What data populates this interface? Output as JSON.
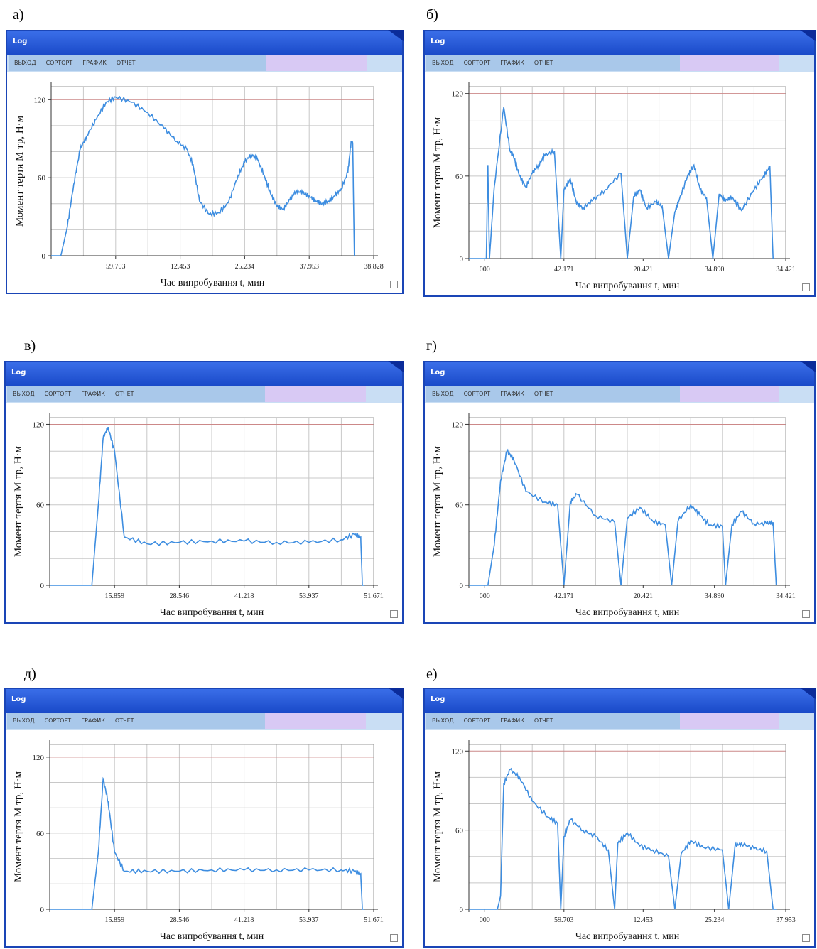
{
  "panels": [
    {
      "label": "а)",
      "window_title": "Log",
      "menu": [
        "ВЫХОД",
        "СОРТОРТ",
        "ГРАФИК",
        "ОТЧЕТ"
      ],
      "chart_data": {
        "type": "line",
        "ylabel": "Момент тертя M тр, Н·м",
        "xlabel": "Час випробування t, мин",
        "yticks": [
          "0",
          "60",
          "120"
        ],
        "ylim": [
          0,
          130
        ],
        "xticks": [
          "59.703",
          "12.453",
          "25.234",
          "37.953",
          "38.828"
        ],
        "xlim": [
          0,
          10
        ],
        "grid": true,
        "series": [
          {
            "x": [
              0,
              0.3,
              0.5,
              0.7,
              0.9,
              1.1,
              1.4,
              1.7,
              2.0,
              2.5,
              3.0,
              3.5,
              3.9,
              4.2,
              4.4,
              4.6,
              4.9,
              5.2,
              5.5,
              5.8,
              6.0,
              6.2,
              6.4,
              6.6,
              6.8,
              7.0,
              7.2,
              7.4,
              7.6,
              7.8,
              8.0,
              8.2,
              8.4,
              8.6,
              8.8,
              9.0,
              9.2,
              9.3,
              9.35,
              9.4
            ],
            "y": [
              0,
              0,
              22,
              55,
              82,
              92,
              105,
              118,
              122,
              118,
              110,
              98,
              88,
              82,
              70,
              42,
              32,
              33,
              41,
              62,
              72,
              78,
              74,
              62,
              48,
              38,
              36,
              43,
              50,
              48,
              46,
              42,
              40,
              42,
              46,
              52,
              64,
              88,
              86,
              0
            ]
          }
        ]
      }
    },
    {
      "label": "б)",
      "window_title": "Log",
      "menu": [
        "ВЫХОД",
        "СОРТОРТ",
        "ГРАФИК",
        "ОТЧЕТ"
      ],
      "chart_data": {
        "type": "line",
        "ylabel": "Момент тертя M тр, Н·м",
        "xlabel": "Час випробування t, мин",
        "yticks": [
          "0",
          "60",
          "120"
        ],
        "ylim": [
          0,
          125
        ],
        "xticks": [
          "000",
          "42.171",
          "20.421",
          "34.890",
          "34.421"
        ],
        "xlim": [
          0,
          10
        ],
        "grid": true,
        "series": [
          {
            "x": [
              0,
              0.5,
              0.55,
              0.6,
              0.65,
              0.8,
              1.1,
              1.3,
              1.4,
              1.6,
              1.8,
              2.0,
              2.2,
              2.4,
              2.7,
              2.9,
              3.0,
              3.2,
              3.4,
              3.6,
              3.9,
              4.3,
              4.8,
              5.0,
              5.2,
              5.4,
              5.6,
              5.9,
              6.1,
              6.3,
              6.5,
              6.6,
              6.9,
              7.1,
              7.3,
              7.5,
              7.7,
              7.9,
              8.1,
              8.3,
              8.6,
              9.0,
              9.3,
              9.5,
              9.6
            ],
            "y": [
              0,
              0,
              0,
              68,
              0,
              52,
              110,
              78,
              75,
              60,
              52,
              62,
              68,
              75,
              78,
              0,
              50,
              58,
              40,
              37,
              42,
              50,
              62,
              0,
              45,
              50,
              37,
              41,
              38,
              0,
              34,
              40,
              60,
              68,
              50,
              44,
              0,
              47,
              42,
              45,
              35,
              50,
              60,
              67,
              0
            ]
          }
        ]
      }
    },
    {
      "label": "в)",
      "window_title": "Log",
      "menu": [
        "ВЫХОД",
        "СОРТОРТ",
        "ГРАФИК",
        "ОТЧЕТ"
      ],
      "chart_data": {
        "type": "line",
        "ylabel": "Момент тертя M тр, Н·м",
        "xlabel": "Час випробування t, мин",
        "yticks": [
          "0",
          "60",
          "120"
        ],
        "ylim": [
          0,
          125
        ],
        "xticks": [
          "15.859",
          "28.546",
          "41.218",
          "53.937",
          "51.671"
        ],
        "xlim": [
          0,
          10
        ],
        "grid": true,
        "series": [
          {
            "x": [
              0,
              1.2,
              1.3,
              1.5,
              1.65,
              1.8,
              2.0,
              2.3,
              3,
              4,
              5,
              6,
              7,
              8,
              9,
              9.4,
              9.6,
              9.65,
              9.7
            ],
            "y": [
              0,
              0,
              0,
              60,
              110,
              118,
              100,
              36,
              31,
              32,
              33,
              33,
              32,
              32,
              34,
              38,
              36,
              0,
              0
            ]
          }
        ]
      }
    },
    {
      "label": "г)",
      "window_title": "Log",
      "menu": [
        "ВЫХОД",
        "СОРТОРТ",
        "ГРАФИК",
        "ОТЧЕТ"
      ],
      "chart_data": {
        "type": "line",
        "ylabel": "Момент тертя M тр, Н·м",
        "xlabel": "Час випробування t, мин",
        "yticks": [
          "0",
          "60",
          "120"
        ],
        "ylim": [
          0,
          125
        ],
        "xticks": [
          "000",
          "42.171",
          "20.421",
          "34.890",
          "34.421"
        ],
        "xlim": [
          0,
          10
        ],
        "grid": true,
        "series": [
          {
            "x": [
              0,
              0.6,
              0.8,
              1.0,
              1.2,
              1.4,
              1.8,
              2.4,
              2.8,
              3.0,
              3.2,
              3.4,
              4.0,
              4.6,
              4.8,
              5.0,
              5.4,
              5.8,
              6.2,
              6.4,
              6.6,
              7.0,
              7.3,
              7.6,
              8.0,
              8.1,
              8.3,
              8.6,
              9.0,
              9.4,
              9.6,
              9.7
            ],
            "y": [
              0,
              0,
              30,
              78,
              100,
              95,
              70,
              62,
              60,
              0,
              62,
              68,
              52,
              47,
              0,
              50,
              58,
              48,
              45,
              0,
              48,
              60,
              52,
              45,
              44,
              0,
              45,
              55,
              46,
              46,
              47,
              0
            ]
          }
        ]
      }
    },
    {
      "label": "д)",
      "window_title": "Log",
      "menu": [
        "ВЫХОД",
        "СОРТОРТ",
        "ГРАФИК",
        "ОТЧЕТ"
      ],
      "chart_data": {
        "type": "line",
        "ylabel": "Момент тертя M тр, Н·м",
        "xlabel": "Час випробування t, мин",
        "yticks": [
          "0",
          "60",
          "120"
        ],
        "ylim": [
          0,
          130
        ],
        "xticks": [
          "15.859",
          "28.546",
          "41.218",
          "53.937",
          "51.671"
        ],
        "xlim": [
          0,
          10
        ],
        "grid": true,
        "series": [
          {
            "x": [
              0,
              1.2,
              1.3,
              1.5,
              1.65,
              1.8,
              2.0,
              2.3,
              3,
              4,
              5,
              6,
              7,
              8,
              9,
              9.4,
              9.6,
              9.65,
              9.7
            ],
            "y": [
              0,
              0,
              0,
              45,
              103,
              85,
              45,
              30,
              30,
              30,
              31,
              31,
              31,
              31,
              31,
              30,
              28,
              0,
              0
            ]
          }
        ]
      }
    },
    {
      "label": "е)",
      "window_title": "Log",
      "menu": [
        "ВЫХОД",
        "СОРТОРТ",
        "ГРАФИК",
        "ОТЧЕТ"
      ],
      "chart_data": {
        "type": "line",
        "ylabel": "Момент тертя M тр, Н·м",
        "xlabel": "Час випробування t, мин",
        "yticks": [
          "0",
          "60",
          "120"
        ],
        "ylim": [
          0,
          125
        ],
        "xticks": [
          "000",
          "59.703",
          "12.453",
          "25.234",
          "37.953"
        ],
        "xlim": [
          0,
          10
        ],
        "grid": true,
        "series": [
          {
            "x": [
              0,
              0.9,
              1.0,
              1.1,
              1.3,
              1.6,
              2.0,
              2.5,
              2.8,
              2.9,
              3.0,
              3.2,
              3.6,
              4.0,
              4.4,
              4.6,
              4.7,
              5.0,
              5.4,
              5.8,
              6.3,
              6.5,
              6.7,
              7.0,
              7.4,
              8.0,
              8.2,
              8.4,
              8.6,
              9.0,
              9.4,
              9.6,
              9.7
            ],
            "y": [
              0,
              0,
              10,
              95,
              106,
              100,
              82,
              70,
              65,
              0,
              55,
              68,
              60,
              55,
              45,
              0,
              50,
              58,
              48,
              45,
              40,
              0,
              42,
              52,
              47,
              45,
              0,
              48,
              50,
              46,
              44,
              0,
              0
            ]
          }
        ]
      }
    }
  ]
}
